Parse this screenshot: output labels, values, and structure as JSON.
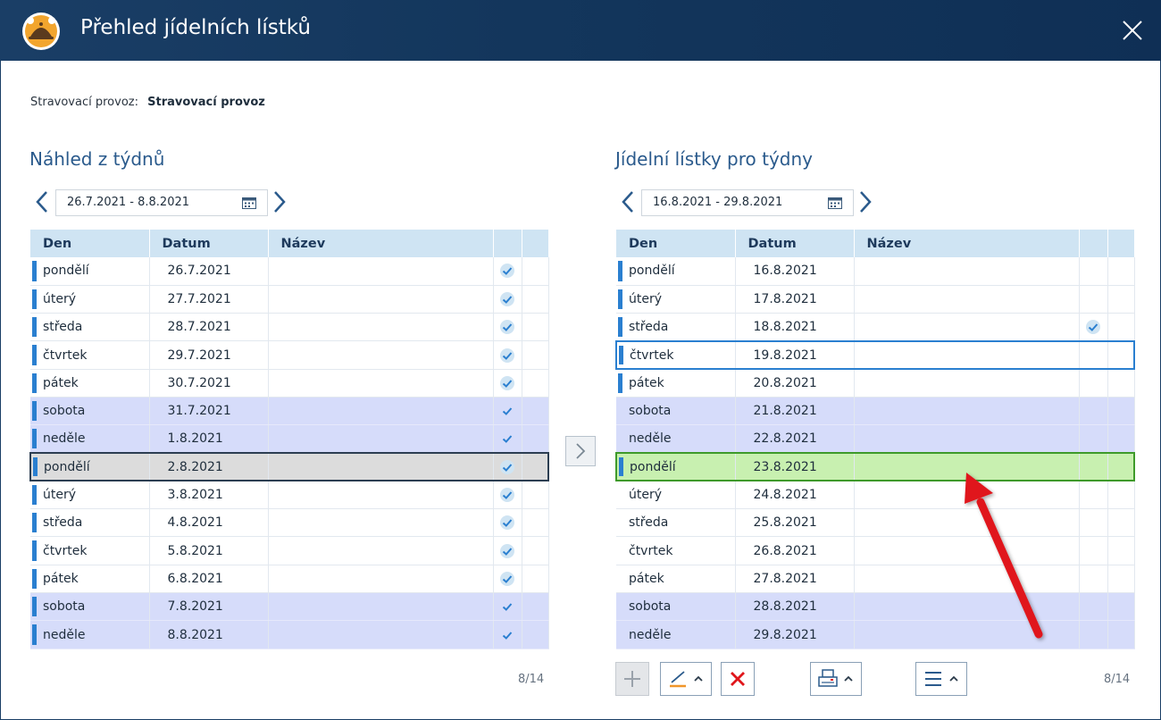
{
  "window": {
    "title": "Přehled jídelních lístků",
    "icon": "cloche-icon",
    "close_icon": "close-icon"
  },
  "provider": {
    "label": "Stravovací provoz:",
    "value": "Stravovací provoz"
  },
  "left": {
    "title": "Náhled z týdnů",
    "date_range": "26.7.2021 - 8.8.2021",
    "columns": [
      "Den",
      "Datum",
      "Název"
    ],
    "rows": [
      {
        "day": "pondělí",
        "date": "26.7.2021",
        "name": "",
        "checked": true,
        "weekend": false
      },
      {
        "day": "úterý",
        "date": "27.7.2021",
        "name": "",
        "checked": true,
        "weekend": false
      },
      {
        "day": "středa",
        "date": "28.7.2021",
        "name": "",
        "checked": true,
        "weekend": false
      },
      {
        "day": "čtvrtek",
        "date": "29.7.2021",
        "name": "",
        "checked": true,
        "weekend": false
      },
      {
        "day": "pátek",
        "date": "30.7.2021",
        "name": "",
        "checked": true,
        "weekend": false
      },
      {
        "day": "sobota",
        "date": "31.7.2021",
        "name": "",
        "checked": true,
        "weekend": true
      },
      {
        "day": "neděle",
        "date": "1.8.2021",
        "name": "",
        "checked": true,
        "weekend": true
      },
      {
        "day": "pondělí",
        "date": "2.8.2021",
        "name": "",
        "checked": true,
        "weekend": false,
        "selected": true
      },
      {
        "day": "úterý",
        "date": "3.8.2021",
        "name": "",
        "checked": true,
        "weekend": false
      },
      {
        "day": "středa",
        "date": "4.8.2021",
        "name": "",
        "checked": true,
        "weekend": false
      },
      {
        "day": "čtvrtek",
        "date": "5.8.2021",
        "name": "",
        "checked": true,
        "weekend": false
      },
      {
        "day": "pátek",
        "date": "6.8.2021",
        "name": "",
        "checked": true,
        "weekend": false
      },
      {
        "day": "sobota",
        "date": "7.8.2021",
        "name": "",
        "checked": true,
        "weekend": true
      },
      {
        "day": "neděle",
        "date": "8.8.2021",
        "name": "",
        "checked": true,
        "weekend": true
      }
    ],
    "pager": "8/14"
  },
  "right": {
    "title": "Jídelní lístky pro týdny",
    "date_range": "16.8.2021 - 29.8.2021",
    "columns": [
      "Den",
      "Datum",
      "Název"
    ],
    "rows": [
      {
        "day": "pondělí",
        "date": "16.8.2021",
        "name": "",
        "checked": false,
        "weekend": false,
        "marker": true
      },
      {
        "day": "úterý",
        "date": "17.8.2021",
        "name": "",
        "checked": false,
        "weekend": false,
        "marker": true
      },
      {
        "day": "středa",
        "date": "18.8.2021",
        "name": "",
        "checked": true,
        "weekend": false,
        "marker": true
      },
      {
        "day": "čtvrtek",
        "date": "19.8.2021",
        "name": "",
        "checked": false,
        "weekend": false,
        "marker": true,
        "focus": true
      },
      {
        "day": "pátek",
        "date": "20.8.2021",
        "name": "",
        "checked": false,
        "weekend": false,
        "marker": true
      },
      {
        "day": "sobota",
        "date": "21.8.2021",
        "name": "",
        "checked": false,
        "weekend": true,
        "marker": false
      },
      {
        "day": "neděle",
        "date": "22.8.2021",
        "name": "",
        "checked": false,
        "weekend": true,
        "marker": false
      },
      {
        "day": "pondělí",
        "date": "23.8.2021",
        "name": "",
        "checked": false,
        "weekend": false,
        "marker": true,
        "selected": true
      },
      {
        "day": "úterý",
        "date": "24.8.2021",
        "name": "",
        "checked": false,
        "weekend": false,
        "marker": false
      },
      {
        "day": "středa",
        "date": "25.8.2021",
        "name": "",
        "checked": false,
        "weekend": false,
        "marker": false
      },
      {
        "day": "čtvrtek",
        "date": "26.8.2021",
        "name": "",
        "checked": false,
        "weekend": false,
        "marker": false
      },
      {
        "day": "pátek",
        "date": "27.8.2021",
        "name": "",
        "checked": false,
        "weekend": false,
        "marker": false
      },
      {
        "day": "sobota",
        "date": "28.8.2021",
        "name": "",
        "checked": false,
        "weekend": true,
        "marker": false
      },
      {
        "day": "neděle",
        "date": "29.8.2021",
        "name": "",
        "checked": false,
        "weekend": true,
        "marker": false
      }
    ],
    "pager": "8/14"
  },
  "toolbar": {
    "buttons": [
      "plus-icon",
      "edit-icon",
      "delete-icon",
      "print-icon",
      "menu-icon"
    ]
  },
  "colors": {
    "titlebar": "#13365c",
    "header": "#cfe4f3",
    "weekend": "#d6dcfa",
    "marker": "#2a7fd0",
    "selected_gray": "#dcdcdc",
    "selected_green": "#c8f0b0",
    "annotation_arrow": "#e0161b"
  }
}
